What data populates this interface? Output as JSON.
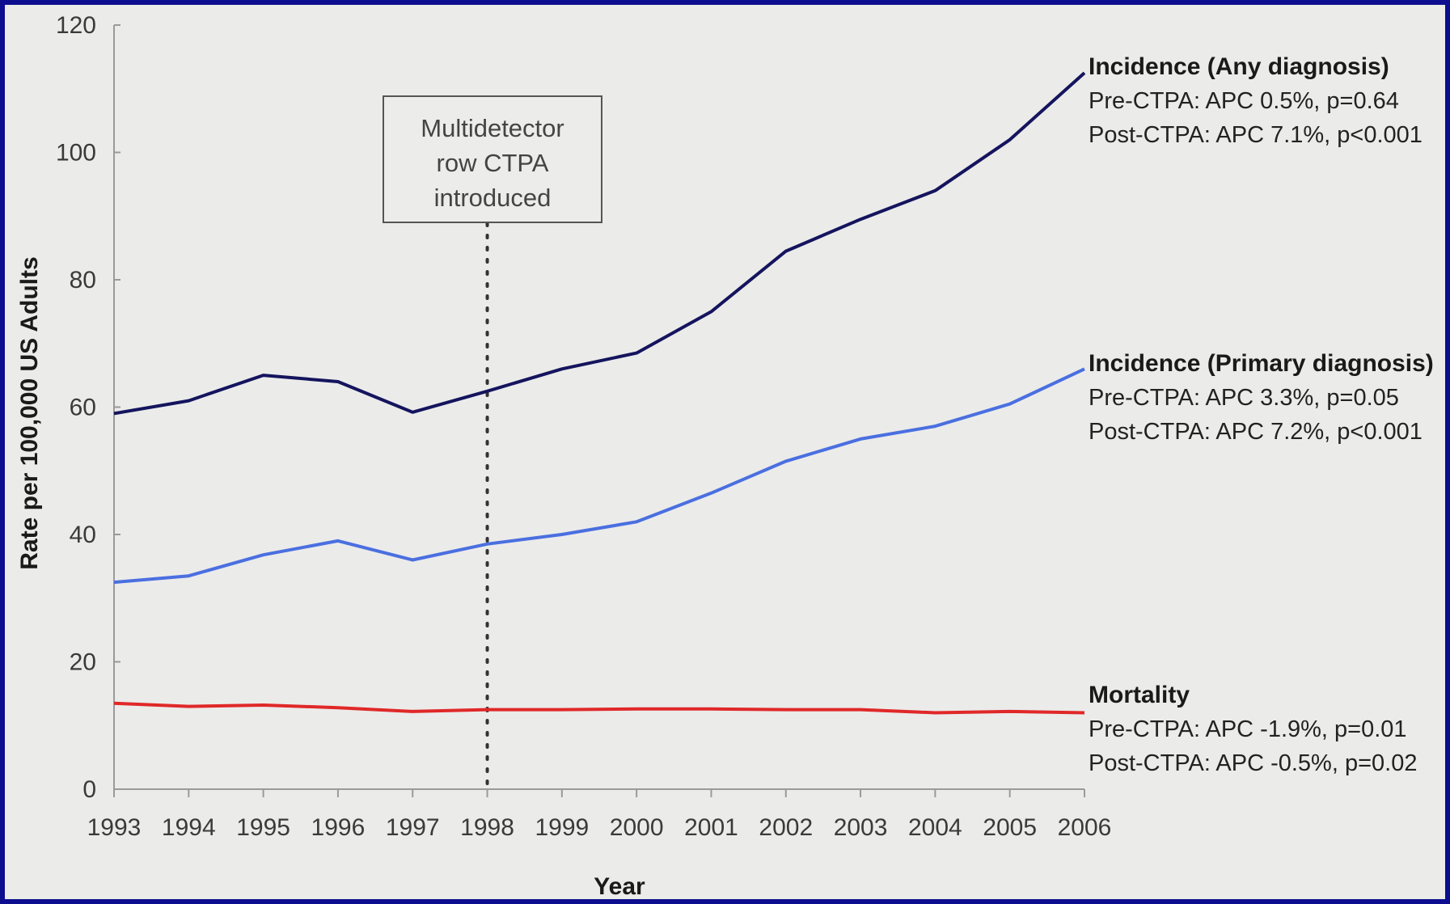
{
  "chart_data": {
    "type": "line",
    "xlabel": "Year",
    "ylabel": "Rate per 100,000 US Adults",
    "ylim": [
      0,
      120
    ],
    "yticks": [
      0,
      20,
      40,
      60,
      80,
      100,
      120
    ],
    "x": [
      1993,
      1994,
      1995,
      1996,
      1997,
      1998,
      1999,
      2000,
      2001,
      2002,
      2003,
      2004,
      2005,
      2006
    ],
    "grid": false,
    "series": [
      {
        "key": "any",
        "color": "#14145e",
        "values": [
          59,
          61,
          65,
          64,
          59.2,
          62.5,
          66,
          68.5,
          75,
          84.5,
          89.5,
          94,
          102,
          112.5
        ]
      },
      {
        "key": "primary",
        "color": "#4a6fe0",
        "values": [
          32.5,
          33.5,
          36.8,
          39,
          36,
          38.5,
          40,
          42,
          46.5,
          51.5,
          55,
          57,
          60.5,
          66
        ]
      },
      {
        "key": "mortality",
        "color": "#e02828",
        "values": [
          13.5,
          13,
          13.2,
          12.8,
          12.2,
          12.5,
          12.5,
          12.6,
          12.6,
          12.5,
          12.5,
          12,
          12.2,
          12
        ]
      }
    ],
    "event": {
      "x": 1998,
      "lines": [
        "Multidetector",
        "row CTPA",
        "introduced"
      ]
    },
    "annotations": [
      {
        "key": "any",
        "title": "Incidence (Any diagnosis)",
        "pre": "Pre-CTPA: APC 0.5%, p=0.64",
        "post": "Post-CTPA: APC 7.1%, p<0.001"
      },
      {
        "key": "primary",
        "title": "Incidence (Primary diagnosis)",
        "pre": "Pre-CTPA: APC 3.3%, p=0.05",
        "post": "Post-CTPA: APC 7.2%, p<0.001"
      },
      {
        "key": "mortality",
        "title": "Mortality",
        "pre": "Pre-CTPA: APC -1.9%, p=0.01",
        "post": "Post-CTPA: APC -0.5%, p=0.02"
      }
    ]
  }
}
